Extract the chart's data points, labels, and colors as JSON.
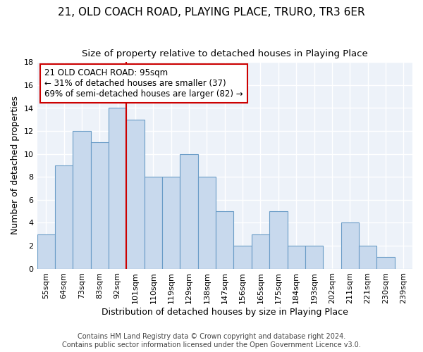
{
  "title": "21, OLD COACH ROAD, PLAYING PLACE, TRURO, TR3 6ER",
  "subtitle": "Size of property relative to detached houses in Playing Place",
  "xlabel": "Distribution of detached houses by size in Playing Place",
  "ylabel": "Number of detached properties",
  "footer_line1": "Contains HM Land Registry data © Crown copyright and database right 2024.",
  "footer_line2": "Contains public sector information licensed under the Open Government Licence v3.0.",
  "bin_labels": [
    "55sqm",
    "64sqm",
    "73sqm",
    "83sqm",
    "92sqm",
    "101sqm",
    "110sqm",
    "119sqm",
    "129sqm",
    "138sqm",
    "147sqm",
    "156sqm",
    "165sqm",
    "175sqm",
    "184sqm",
    "193sqm",
    "202sqm",
    "211sqm",
    "221sqm",
    "230sqm",
    "239sqm"
  ],
  "bar_values": [
    3,
    9,
    12,
    11,
    14,
    13,
    8,
    8,
    10,
    8,
    5,
    2,
    3,
    5,
    2,
    2,
    0,
    4,
    2,
    1,
    0
  ],
  "bar_color": "#c8d9ed",
  "bar_edge_color": "#6a9cc7",
  "vline_x_index": 4.5,
  "vline_color": "#cc0000",
  "annotation_text": "21 OLD COACH ROAD: 95sqm\n← 31% of detached houses are smaller (37)\n69% of semi-detached houses are larger (82) →",
  "annotation_box_color": "white",
  "annotation_box_edge_color": "#cc0000",
  "ylim": [
    0,
    18
  ],
  "yticks": [
    0,
    2,
    4,
    6,
    8,
    10,
    12,
    14,
    16,
    18
  ],
  "title_fontsize": 11,
  "subtitle_fontsize": 9.5,
  "xlabel_fontsize": 9,
  "ylabel_fontsize": 9,
  "tick_fontsize": 8,
  "footer_fontsize": 7,
  "annotation_fontsize": 8.5,
  "background_color": "#edf2f9",
  "grid_color": "#ffffff",
  "fig_bg_color": "#ffffff"
}
